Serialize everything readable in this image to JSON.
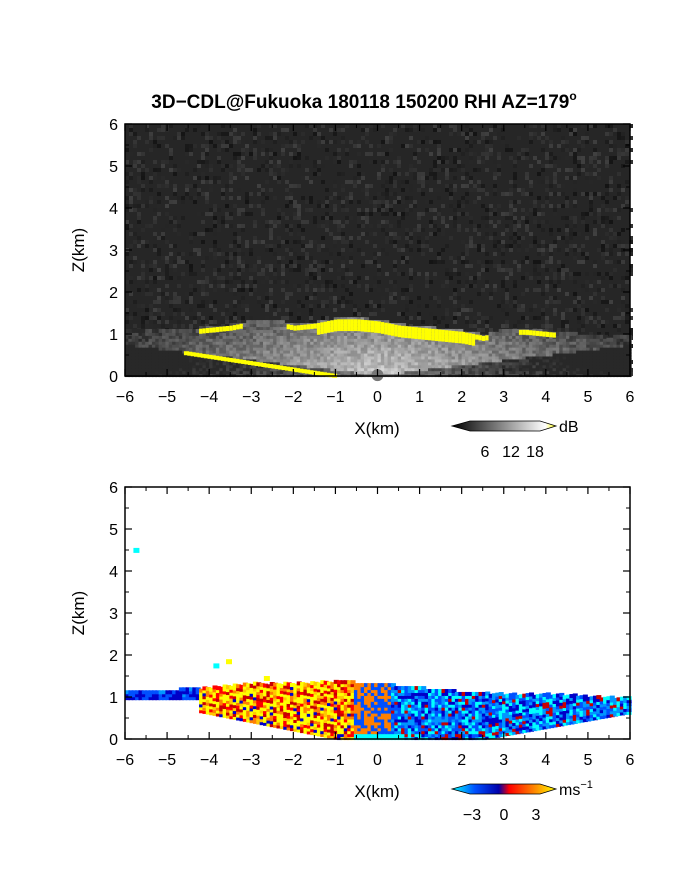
{
  "chart_data": [
    {
      "type": "heatmap",
      "title": "3D−CDL@Fukuoka 180118 150200 RHI AZ=179",
      "title_superscript": "o",
      "xlabel": "X(km)",
      "ylabel": "Z(km)",
      "xlim": [
        -6,
        6
      ],
      "ylim": [
        0,
        6
      ],
      "x_ticks": [
        "−6",
        "−5",
        "−4",
        "−3",
        "−2",
        "−1",
        "0",
        "1",
        "2",
        "3",
        "4",
        "5",
        "6"
      ],
      "y_ticks": [
        "0",
        "1",
        "2",
        "3",
        "4",
        "5",
        "6"
      ],
      "grid": false,
      "background": "#262626",
      "colorbar": {
        "label": "dB",
        "ticks": [
          "6",
          "12",
          "18"
        ],
        "range": [
          0,
          20
        ],
        "colors": [
          "#000000",
          "#555555",
          "#aaaaaa",
          "#ffffff",
          "#ffff00"
        ]
      },
      "boundary_top": [
        [
          -6,
          1.1
        ],
        [
          -5,
          1.05
        ],
        [
          -4.5,
          1.1
        ],
        [
          -4,
          1.15
        ],
        [
          -3.5,
          1.2
        ],
        [
          -3,
          1.3
        ],
        [
          -2.5,
          1.3
        ],
        [
          -2,
          1.2
        ],
        [
          -1.5,
          1.25
        ],
        [
          -1,
          1.35
        ],
        [
          -0.5,
          1.35
        ],
        [
          0,
          1.3
        ],
        [
          0.5,
          1.2
        ],
        [
          1,
          1.15
        ],
        [
          1.5,
          1.1
        ],
        [
          2,
          1.05
        ],
        [
          2.5,
          0.95
        ],
        [
          3,
          1.1
        ],
        [
          3.5,
          1.1
        ],
        [
          4,
          1.05
        ],
        [
          4.5,
          1.0
        ],
        [
          5,
          0.95
        ],
        [
          5.5,
          0.9
        ],
        [
          6,
          0.95
        ]
      ]
    },
    {
      "type": "heatmap",
      "xlabel": "X(km)",
      "ylabel": "Z(km)",
      "xlim": [
        -6,
        6
      ],
      "ylim": [
        0,
        6
      ],
      "x_ticks": [
        "−6",
        "−5",
        "−4",
        "−3",
        "−2",
        "−1",
        "0",
        "1",
        "2",
        "3",
        "4",
        "5",
        "6"
      ],
      "y_ticks": [
        "0",
        "1",
        "2",
        "3",
        "4",
        "5",
        "6"
      ],
      "grid": false,
      "background": "#ffffff",
      "colorbar": {
        "label": "ms",
        "label_superscript": "−1",
        "ticks": [
          "−3",
          "0",
          "3"
        ],
        "range": [
          -4,
          4
        ],
        "colors": [
          "#00ffff",
          "#0050ff",
          "#0000aa",
          "#ff0000",
          "#ff8000",
          "#ffff00"
        ]
      },
      "boundary_top": [
        [
          -6,
          1.1
        ],
        [
          -5,
          1.15
        ],
        [
          -4,
          1.2
        ],
        [
          -3,
          1.3
        ],
        [
          -2,
          1.3
        ],
        [
          -1,
          1.35
        ],
        [
          0,
          1.3
        ],
        [
          1,
          1.2
        ],
        [
          2,
          1.1
        ],
        [
          3,
          1.05
        ],
        [
          4,
          1.05
        ],
        [
          5,
          1.0
        ],
        [
          6,
          0.95
        ]
      ]
    }
  ]
}
